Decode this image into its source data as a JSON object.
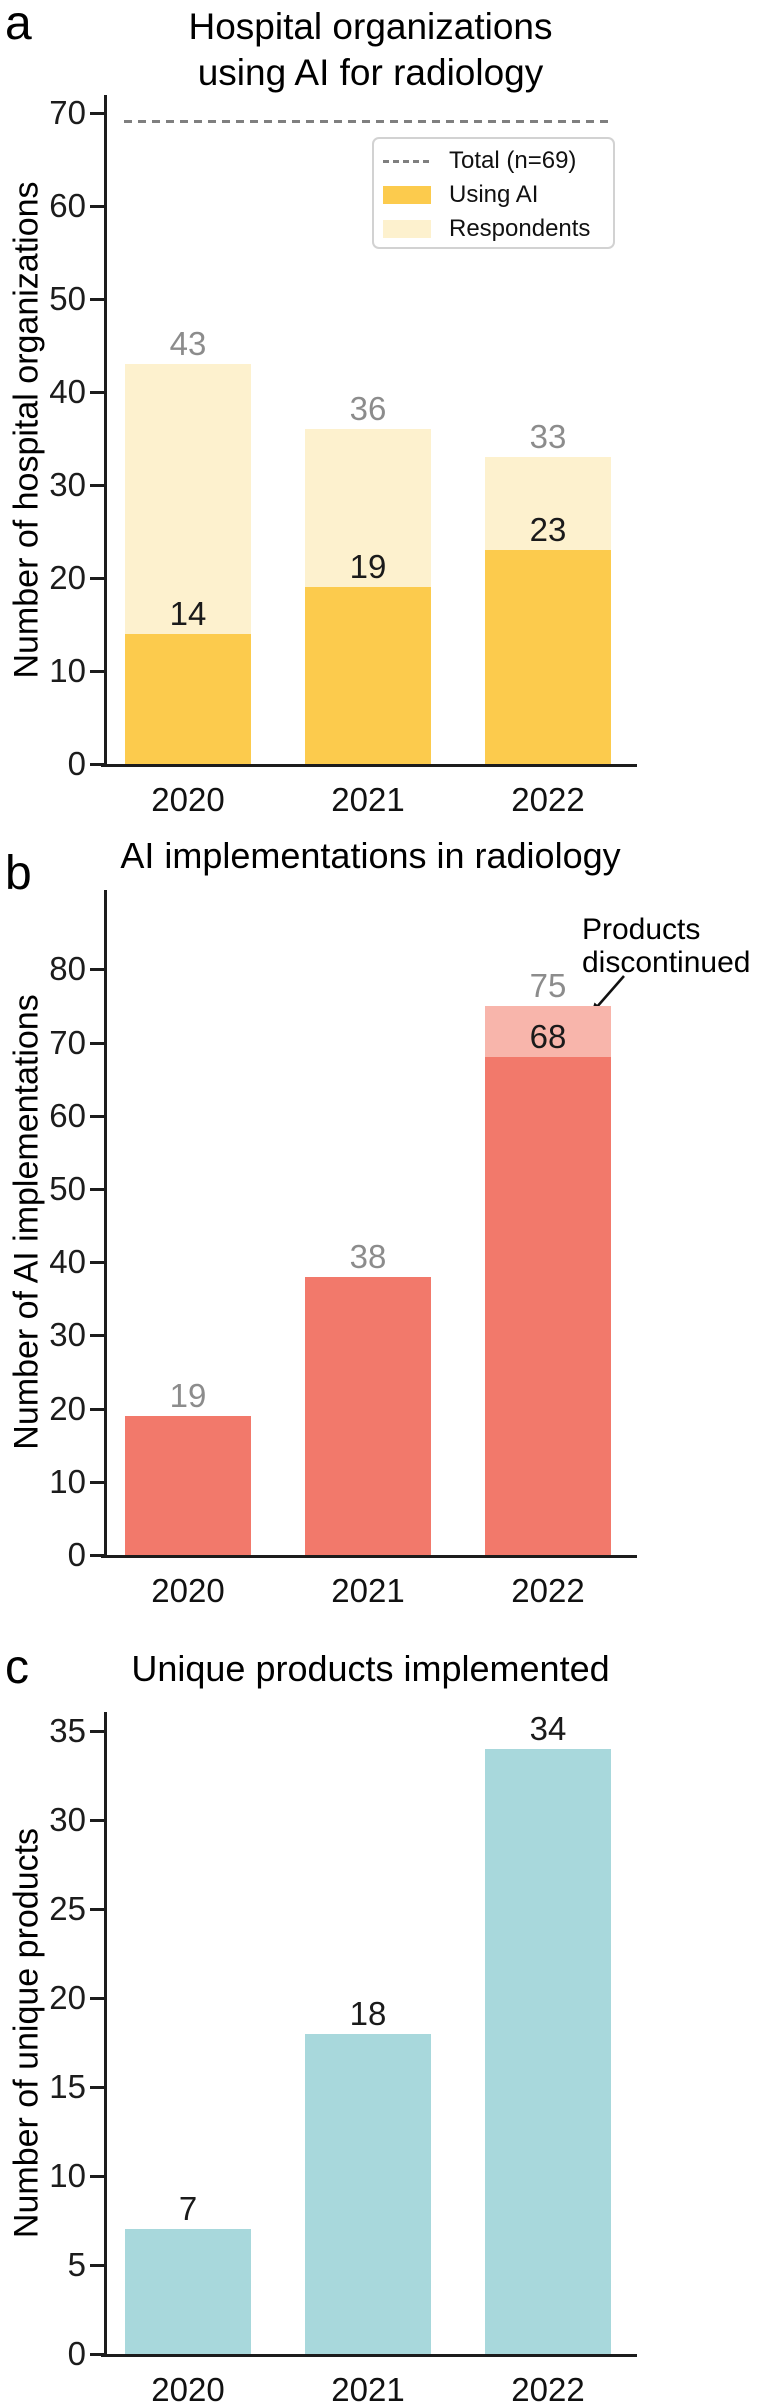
{
  "chart_data": [
    {
      "type": "bar",
      "mode": "overlay",
      "panel_label": "a",
      "title": "Hospital organizations\nusing AI for radiology",
      "ylabel": "Number of hospital organizations",
      "categories": [
        "2020",
        "2021",
        "2022"
      ],
      "yticks": [
        0,
        10,
        20,
        30,
        40,
        50,
        60,
        70
      ],
      "ylim": [
        0,
        72
      ],
      "series": [
        {
          "name": "Respondents",
          "color": "#FDF1CE",
          "values": [
            43,
            36,
            33
          ]
        },
        {
          "name": "Using AI",
          "color": "#FCCB4D",
          "values": [
            14,
            19,
            23
          ]
        }
      ],
      "reference_line": {
        "label": "Total (n=69)",
        "value": 69,
        "color": "#7f7f7f",
        "style": "dashed"
      },
      "legend": {
        "position": "upper right",
        "entries": [
          {
            "label": "Total (n=69)",
            "type": "dash",
            "color": "#7f7f7f"
          },
          {
            "label": "Using AI",
            "type": "swatch",
            "color": "#FCCB4D"
          },
          {
            "label": "Respondents",
            "type": "swatch",
            "color": "#FDF1CE"
          }
        ]
      },
      "bar_labels": [
        {
          "bar": 0,
          "text": "43",
          "at": 43,
          "color": "#8C8C8C"
        },
        {
          "bar": 1,
          "text": "36",
          "at": 36,
          "color": "#8C8C8C"
        },
        {
          "bar": 2,
          "text": "33",
          "at": 33,
          "color": "#8C8C8C"
        },
        {
          "bar": 0,
          "text": "14",
          "at": 14,
          "color": "#1a1a1a"
        },
        {
          "bar": 1,
          "text": "19",
          "at": 19,
          "color": "#1a1a1a"
        },
        {
          "bar": 2,
          "text": "23",
          "at": 23,
          "color": "#1a1a1a"
        }
      ]
    },
    {
      "type": "bar",
      "mode": "stacked",
      "panel_label": "b",
      "title": "AI implementations in radiology",
      "ylabel": "Number of AI implementations",
      "categories": [
        "2020",
        "2021",
        "2022"
      ],
      "yticks": [
        0,
        10,
        20,
        30,
        40,
        50,
        60,
        70,
        80
      ],
      "ylim": [
        0,
        91
      ],
      "series": [
        {
          "name": "AI implementations",
          "color": "#F2796B",
          "values": [
            19,
            38,
            68
          ]
        },
        {
          "name": "Products discontinued",
          "color": "#F8B5AB",
          "values": [
            0,
            0,
            7
          ]
        }
      ],
      "annotation": {
        "text": "Products\ndiscontinued"
      },
      "bar_labels": [
        {
          "bar": 0,
          "text": "19",
          "at": 19,
          "color": "#8C8C8C"
        },
        {
          "bar": 1,
          "text": "38",
          "at": 38,
          "color": "#8C8C8C"
        },
        {
          "bar": 2,
          "text": "75",
          "at": 75,
          "color": "#8C8C8C"
        },
        {
          "bar": 2,
          "text": "68",
          "at": 68,
          "color": "#1a1a1a"
        }
      ]
    },
    {
      "type": "bar",
      "mode": "single",
      "panel_label": "c",
      "title": "Unique products implemented",
      "ylabel": "Number of unique products",
      "categories": [
        "2020",
        "2021",
        "2022"
      ],
      "yticks": [
        0,
        5,
        10,
        15,
        20,
        25,
        30,
        35
      ],
      "ylim": [
        0,
        36
      ],
      "series": [
        {
          "name": "Unique products",
          "color": "#A8D8DC",
          "values": [
            7,
            18,
            34
          ]
        }
      ],
      "bar_labels": [
        {
          "bar": 0,
          "text": "7",
          "at": 7,
          "color": "#1a1a1a"
        },
        {
          "bar": 1,
          "text": "18",
          "at": 18,
          "color": "#1a1a1a"
        },
        {
          "bar": 2,
          "text": "34",
          "at": 34,
          "color": "#1a1a1a"
        }
      ]
    }
  ]
}
